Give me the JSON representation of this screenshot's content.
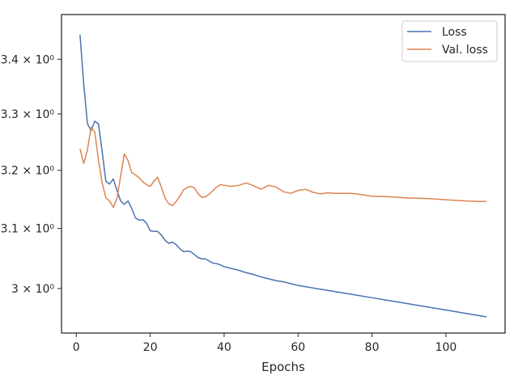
{
  "chart_data": {
    "type": "line",
    "title": "",
    "xlabel": "Epochs",
    "ylabel": "",
    "yscale": "log",
    "xlim": [
      -4,
      116
    ],
    "ylim": [
      2.928,
      3.484
    ],
    "grid": false,
    "legend_placement": "top-right",
    "x_ticks": [
      0,
      20,
      40,
      60,
      80,
      100
    ],
    "x_tick_labels": [
      "0",
      "20",
      "40",
      "60",
      "80",
      "100"
    ],
    "y_ticks": [
      3.0,
      3.1,
      3.2,
      3.3,
      3.4
    ],
    "y_tick_labels": [
      "3 × 10⁰",
      "3.1 × 10⁰",
      "3.2 × 10⁰",
      "3.3 × 10⁰",
      "3.4 × 10⁰"
    ],
    "series": [
      {
        "name": "Loss",
        "color": "#4c72b0",
        "points": [
          [
            1,
            3.446
          ],
          [
            2,
            3.355
          ],
          [
            3,
            3.283
          ],
          [
            4,
            3.27
          ],
          [
            5,
            3.287
          ],
          [
            6,
            3.282
          ],
          [
            7,
            3.233
          ],
          [
            8,
            3.181
          ],
          [
            9,
            3.176
          ],
          [
            10,
            3.185
          ],
          [
            11,
            3.165
          ],
          [
            12,
            3.147
          ],
          [
            13,
            3.141
          ],
          [
            14,
            3.147
          ],
          [
            15,
            3.134
          ],
          [
            16,
            3.118
          ],
          [
            17,
            3.114
          ],
          [
            18,
            3.115
          ],
          [
            19,
            3.109
          ],
          [
            20,
            3.096
          ],
          [
            21,
            3.095
          ],
          [
            22,
            3.095
          ],
          [
            23,
            3.089
          ],
          [
            24,
            3.08
          ],
          [
            25,
            3.075
          ],
          [
            26,
            3.077
          ],
          [
            27,
            3.073
          ],
          [
            28,
            3.066
          ],
          [
            29,
            3.061
          ],
          [
            30,
            3.062
          ],
          [
            31,
            3.061
          ],
          [
            32,
            3.056
          ],
          [
            33,
            3.051
          ],
          [
            34,
            3.049
          ],
          [
            35,
            3.049
          ],
          [
            36,
            3.045
          ],
          [
            37,
            3.042
          ],
          [
            38,
            3.041
          ],
          [
            39,
            3.039
          ],
          [
            40,
            3.036
          ],
          [
            42,
            3.033
          ],
          [
            44,
            3.03
          ],
          [
            46,
            3.026
          ],
          [
            48,
            3.023
          ],
          [
            50,
            3.019
          ],
          [
            52,
            3.016
          ],
          [
            54,
            3.013
          ],
          [
            56,
            3.011
          ],
          [
            58,
            3.008
          ],
          [
            60,
            3.005
          ],
          [
            65,
            3.0
          ],
          [
            70,
            2.995
          ],
          [
            75,
            2.99
          ],
          [
            80,
            2.985
          ],
          [
            85,
            2.98
          ],
          [
            90,
            2.975
          ],
          [
            95,
            2.97
          ],
          [
            100,
            2.965
          ],
          [
            105,
            2.96
          ],
          [
            111,
            2.954
          ]
        ]
      },
      {
        "name": "Val. loss",
        "color": "#dd8452",
        "points": [
          [
            1,
            3.238
          ],
          [
            2,
            3.212
          ],
          [
            3,
            3.235
          ],
          [
            4,
            3.276
          ],
          [
            5,
            3.268
          ],
          [
            6,
            3.218
          ],
          [
            7,
            3.178
          ],
          [
            8,
            3.152
          ],
          [
            9,
            3.147
          ],
          [
            10,
            3.136
          ],
          [
            11,
            3.151
          ],
          [
            12,
            3.19
          ],
          [
            13,
            3.229
          ],
          [
            14,
            3.217
          ],
          [
            15,
            3.196
          ],
          [
            16,
            3.192
          ],
          [
            17,
            3.187
          ],
          [
            18,
            3.18
          ],
          [
            19,
            3.175
          ],
          [
            20,
            3.172
          ],
          [
            21,
            3.181
          ],
          [
            22,
            3.188
          ],
          [
            23,
            3.171
          ],
          [
            24,
            3.152
          ],
          [
            25,
            3.142
          ],
          [
            26,
            3.139
          ],
          [
            27,
            3.146
          ],
          [
            28,
            3.155
          ],
          [
            29,
            3.166
          ],
          [
            30,
            3.17
          ],
          [
            31,
            3.172
          ],
          [
            32,
            3.169
          ],
          [
            33,
            3.159
          ],
          [
            34,
            3.153
          ],
          [
            35,
            3.154
          ],
          [
            36,
            3.159
          ],
          [
            37,
            3.165
          ],
          [
            38,
            3.171
          ],
          [
            39,
            3.175
          ],
          [
            40,
            3.174
          ],
          [
            42,
            3.172
          ],
          [
            44,
            3.174
          ],
          [
            46,
            3.178
          ],
          [
            48,
            3.173
          ],
          [
            50,
            3.167
          ],
          [
            52,
            3.174
          ],
          [
            54,
            3.171
          ],
          [
            56,
            3.163
          ],
          [
            58,
            3.16
          ],
          [
            60,
            3.165
          ],
          [
            62,
            3.167
          ],
          [
            64,
            3.162
          ],
          [
            66,
            3.159
          ],
          [
            68,
            3.161
          ],
          [
            70,
            3.16
          ],
          [
            72,
            3.16
          ],
          [
            74,
            3.16
          ],
          [
            76,
            3.159
          ],
          [
            78,
            3.157
          ],
          [
            80,
            3.155
          ],
          [
            85,
            3.154
          ],
          [
            90,
            3.152
          ],
          [
            95,
            3.151
          ],
          [
            100,
            3.149
          ],
          [
            105,
            3.147
          ],
          [
            109,
            3.146
          ],
          [
            111,
            3.146
          ]
        ]
      }
    ]
  }
}
